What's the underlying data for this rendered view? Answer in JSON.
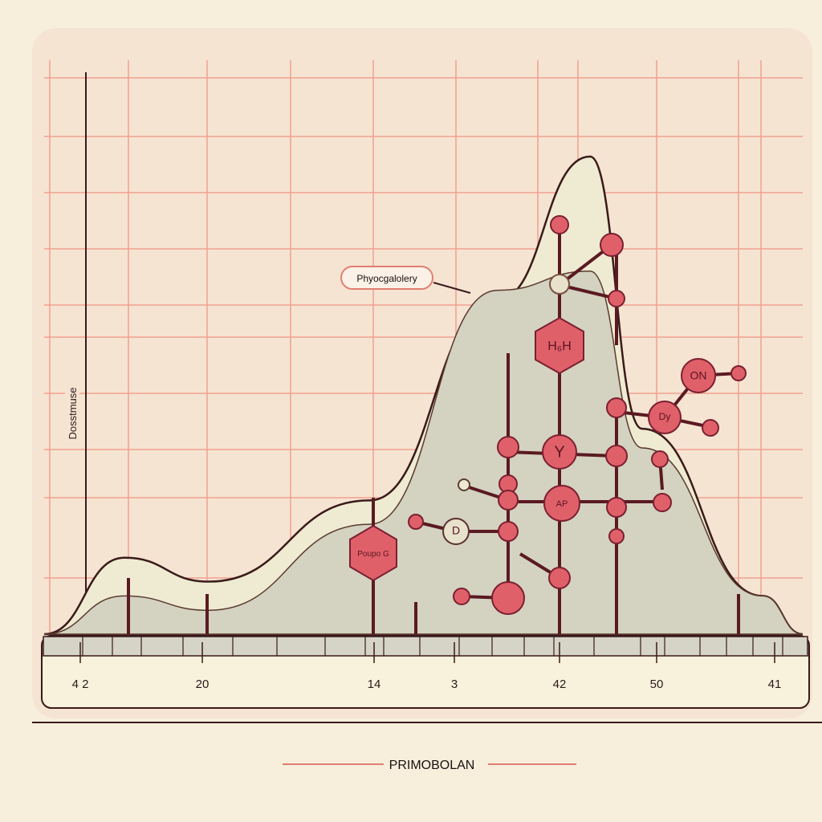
{
  "chart_data": {
    "type": "area",
    "title": "PRIMOBOLAN",
    "ylabel": "Dosstmuse",
    "xlabel": "",
    "x_tick_labels": [
      "4 2",
      "20",
      "14",
      "3",
      "42",
      "50",
      "41"
    ],
    "grid": true,
    "series": [
      {
        "relative_heights": [
          0,
          0.16,
          0.11,
          0.28,
          0.7,
          1.0,
          0.43,
          0.08,
          0
        ]
      },
      {
        "relative_heights": [
          0,
          0.08,
          0.05,
          0.23,
          0.72,
          0.76,
          0.39,
          0.08,
          0
        ]
      }
    ],
    "annotations": [
      "Phyocgalolery"
    ]
  },
  "molecule": {
    "labels": {
      "hexagon_top": "H₆H",
      "node_y": "Y",
      "node_ap": "AP",
      "node_on": "ON",
      "node_dy": "Dy",
      "node_d": "D",
      "hexagon_left": "Poupo G"
    }
  },
  "colors": {
    "background": "#f7efdc",
    "grid": "#f0a090",
    "atom": "#e0606a",
    "curve_fill": "#d4d2c0",
    "curve_outer": "#efebd2",
    "line": "#4a1a1e"
  }
}
